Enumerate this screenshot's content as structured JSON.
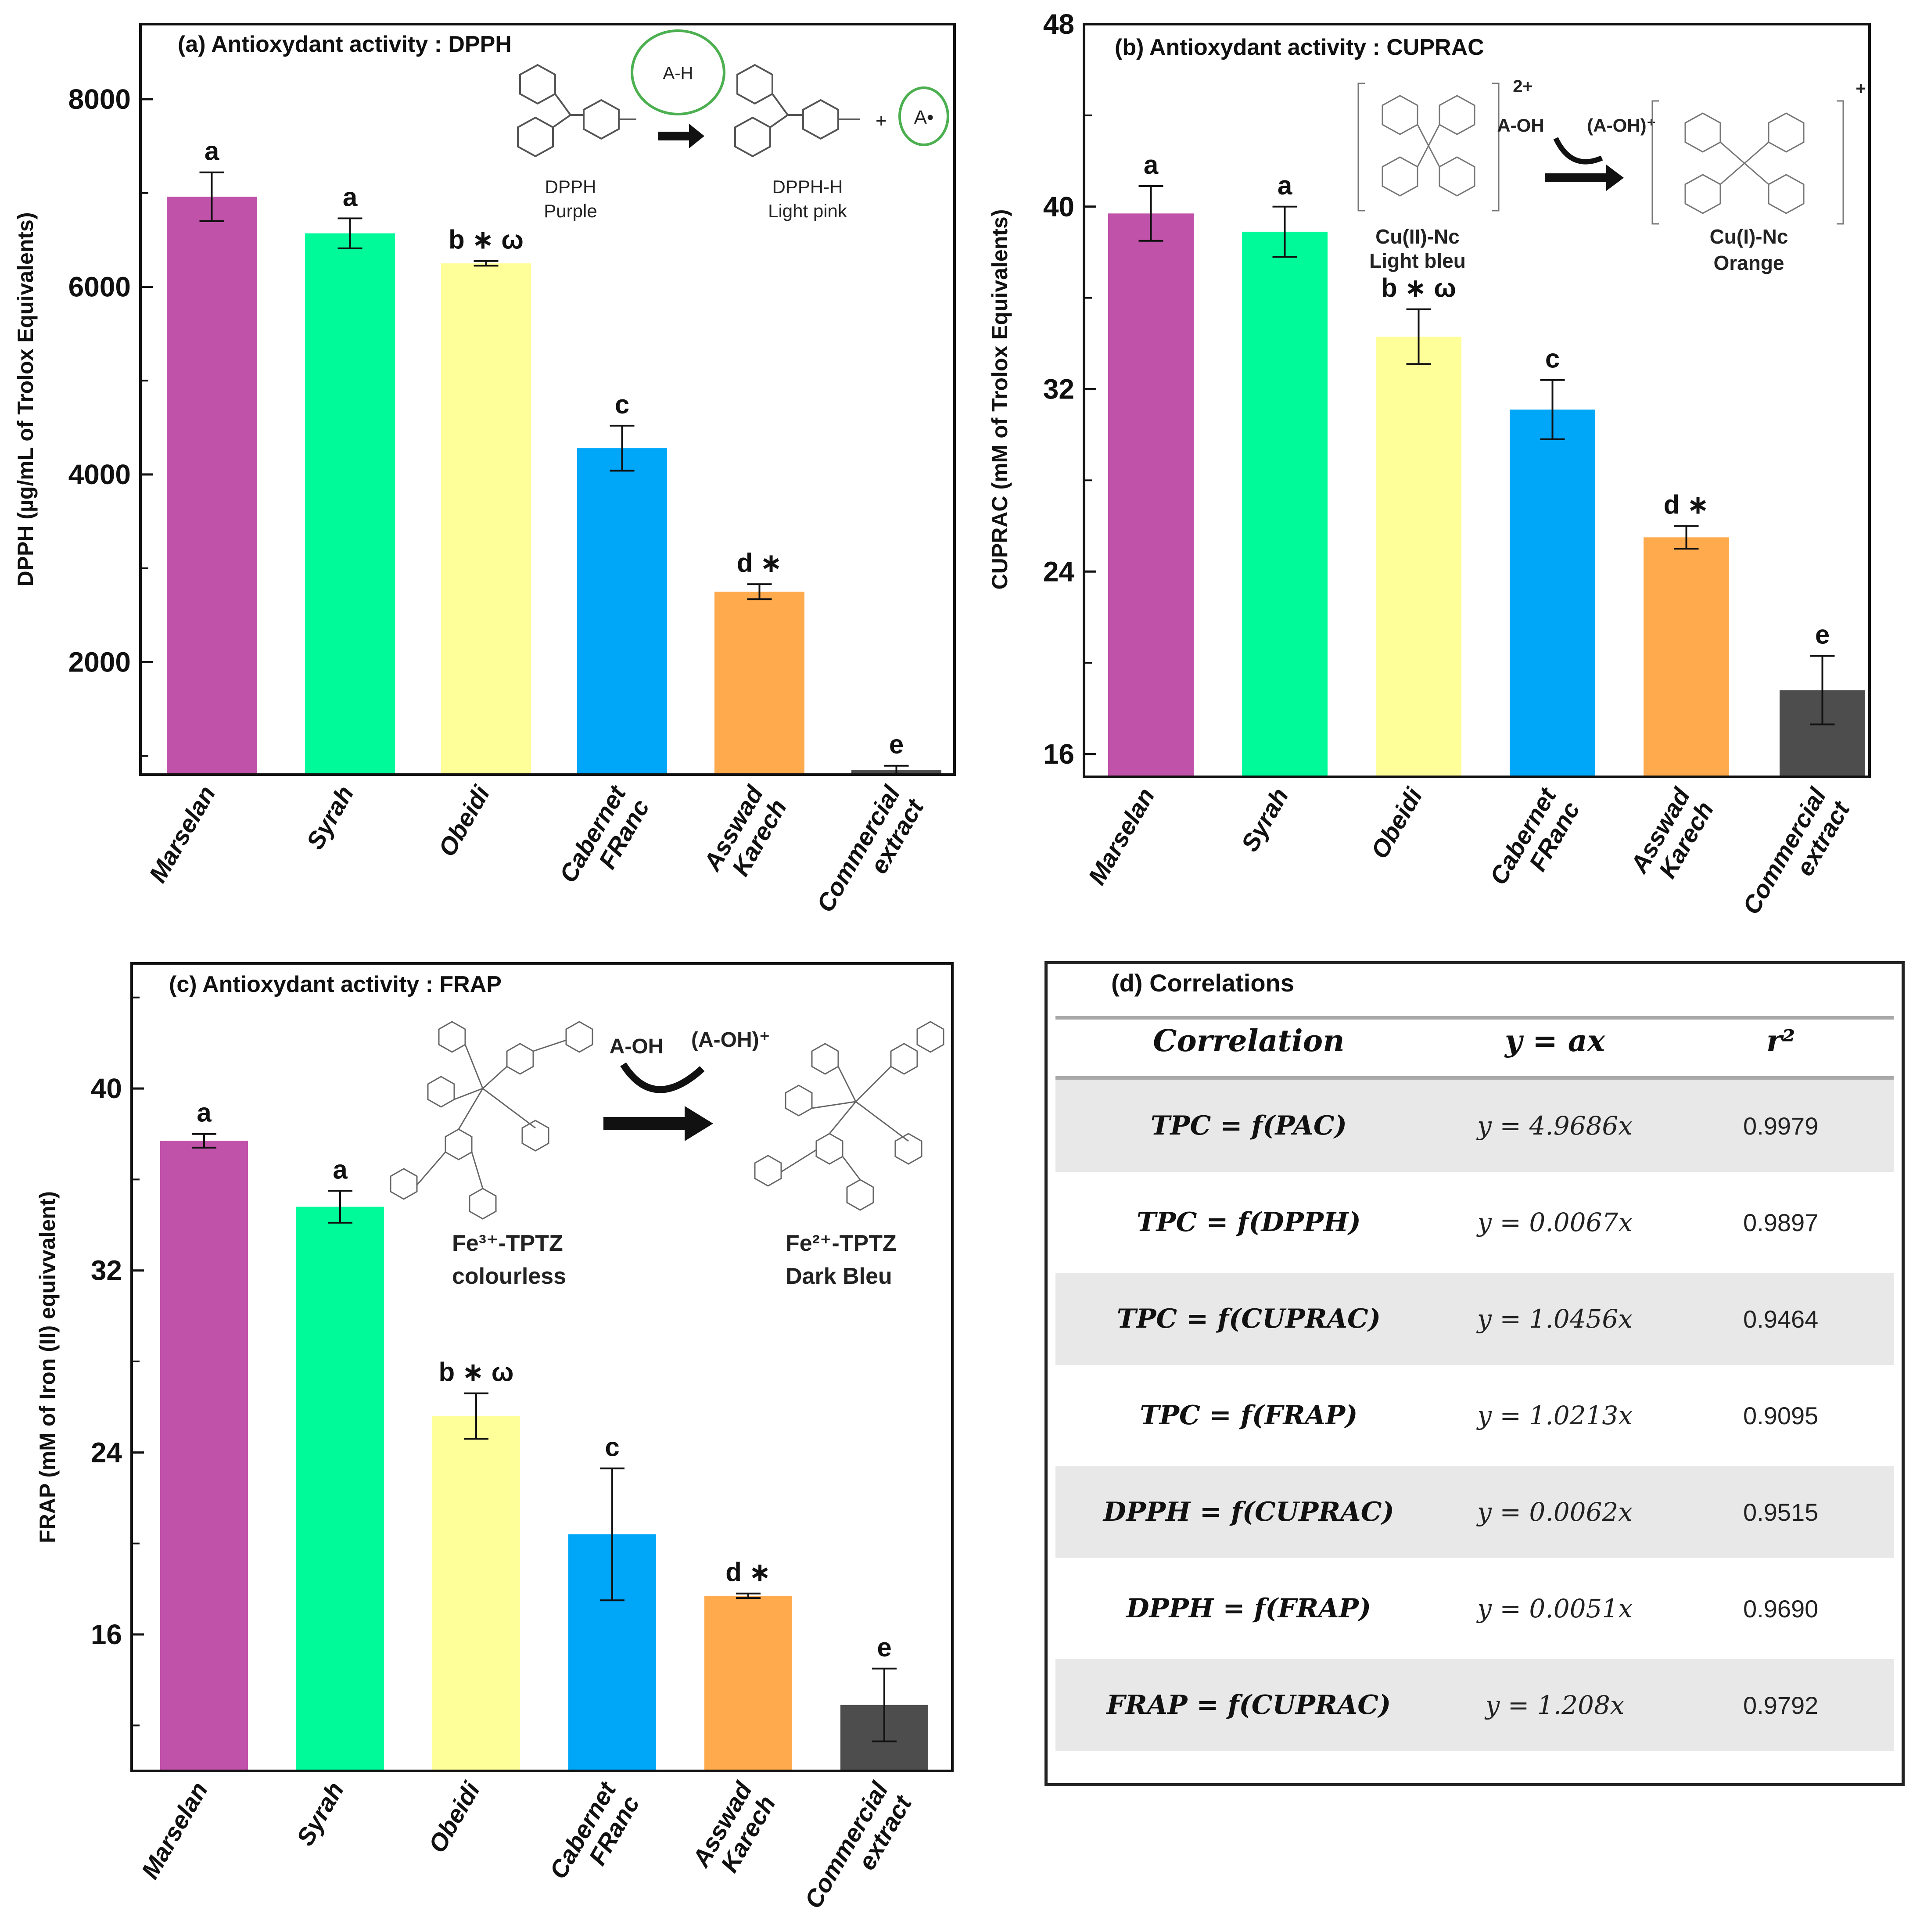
{
  "chart_data": [
    {
      "id": "a",
      "type": "bar",
      "title": "(a) Antioxydant activity : DPPH",
      "ylabel": "DPPH (µg/mL of Trolox Equivalents)",
      "xlabel": "",
      "ylim": [
        800,
        8800
      ],
      "yticks": [
        2000,
        4000,
        6000,
        8000
      ],
      "minor_ticks": [
        1000,
        3000,
        5000,
        7000
      ],
      "categories": [
        [
          "Marselan"
        ],
        [
          "Syrah"
        ],
        [
          "Obeidi"
        ],
        [
          "Cabernet",
          "FRanc"
        ],
        [
          "Asswad",
          "Karech"
        ],
        [
          "Commercial",
          "extract"
        ]
      ],
      "values": [
        6960,
        6570,
        6250,
        4280,
        2750,
        850
      ],
      "errors": [
        260,
        160,
        25,
        240,
        80,
        45
      ],
      "labels": [
        "a",
        "a",
        "b ∗ ω",
        "c",
        "d ∗",
        "e"
      ],
      "colors": [
        "#C152A9",
        "#00FA9A",
        "#FFFF99",
        "#00A6F8",
        "#FFAA4C",
        "#4D4D4D"
      ],
      "scheme": {
        "left": "DPPH",
        "left2": "Purple",
        "right": "DPPH-H",
        "right2": "Light pink",
        "ah": "A-H",
        "radical": "A•"
      }
    },
    {
      "id": "b",
      "type": "bar",
      "title": "(b) Antioxydant activity : CUPRAC",
      "ylabel": "CUPRAC (mM of Trolox Equivalents)",
      "xlabel": "",
      "ylim": [
        15,
        48
      ],
      "yticks": [
        16,
        24,
        32,
        40,
        48
      ],
      "minor_ticks": [
        20,
        28,
        36,
        44
      ],
      "categories": [
        [
          "Marselan"
        ],
        [
          "Syrah"
        ],
        [
          "Obeidi"
        ],
        [
          "Cabernet",
          "FRanc"
        ],
        [
          "Asswad",
          "Karech"
        ],
        [
          "Commercial",
          "extract"
        ]
      ],
      "values": [
        39.7,
        38.9,
        34.3,
        31.1,
        25.5,
        18.8
      ],
      "errors": [
        1.2,
        1.1,
        1.2,
        1.3,
        0.5,
        1.5
      ],
      "labels": [
        "a",
        "a",
        "b ∗ ω",
        "c",
        "d ∗",
        "e"
      ],
      "colors": [
        "#C152A9",
        "#00FA9A",
        "#FFFF99",
        "#00A6F8",
        "#FFAA4C",
        "#4D4D4D"
      ],
      "scheme": {
        "left": "Cu(II)-Nc",
        "left2": "Light bleu",
        "right": "Cu(I)-Nc",
        "right2": "Orange",
        "reagent": "A-OH",
        "product": "(A-OH)⁺",
        "charge_left": "2+",
        "charge_right": "+"
      }
    },
    {
      "id": "c",
      "type": "bar",
      "title": "(c) Antioxydant activity : FRAP",
      "ylabel": "FRAP (mM of Iron (II) equivvalent)",
      "xlabel": "",
      "ylim": [
        10,
        45.5
      ],
      "yticks": [
        16,
        24,
        32,
        40
      ],
      "minor_ticks": [
        12,
        20,
        28,
        36,
        44
      ],
      "categories": [
        [
          "Marselan"
        ],
        [
          "Syrah"
        ],
        [
          "Obeidi"
        ],
        [
          "Cabernet",
          "FRanc"
        ],
        [
          "Asswad",
          "Karech"
        ],
        [
          "Commercial",
          "extract"
        ]
      ],
      "values": [
        37.7,
        34.8,
        25.6,
        20.4,
        17.7,
        12.9
      ],
      "errors": [
        0.3,
        0.7,
        1.0,
        2.9,
        0.1,
        1.6
      ],
      "labels": [
        "a",
        "a",
        "b ∗ ω",
        "c",
        "d ∗",
        "e"
      ],
      "colors": [
        "#C152A9",
        "#00FA9A",
        "#FFFF99",
        "#00A6F8",
        "#FFAA4C",
        "#4D4D4D"
      ],
      "scheme": {
        "left": "Fe³⁺-TPTZ",
        "left2": "colourless",
        "right": "Fe²⁺-TPTZ",
        "right2": "Dark Bleu",
        "reagent": "A-OH",
        "product": "(A-OH)⁺"
      }
    }
  ],
  "table": {
    "title": "(d) Correlations",
    "headers": [
      "Correlation",
      "y = ax",
      "r²"
    ],
    "rows": [
      [
        "TPC = f(PAC)",
        "y = 4.9686x",
        "0.9979"
      ],
      [
        "TPC = f(DPPH)",
        "y = 0.0067x",
        "0.9897"
      ],
      [
        "TPC = f(CUPRAC)",
        "y = 1.0456x",
        "0.9464"
      ],
      [
        "TPC = f(FRAP)",
        "y = 1.0213x",
        "0.9095"
      ],
      [
        "DPPH = f(CUPRAC)",
        "y = 0.0062x",
        "0.9515"
      ],
      [
        "DPPH = f(FRAP)",
        "y = 0.0051x",
        "0.9690"
      ],
      [
        "FRAP = f(CUPRAC)",
        "y = 1.208x",
        "0.9792"
      ]
    ]
  }
}
